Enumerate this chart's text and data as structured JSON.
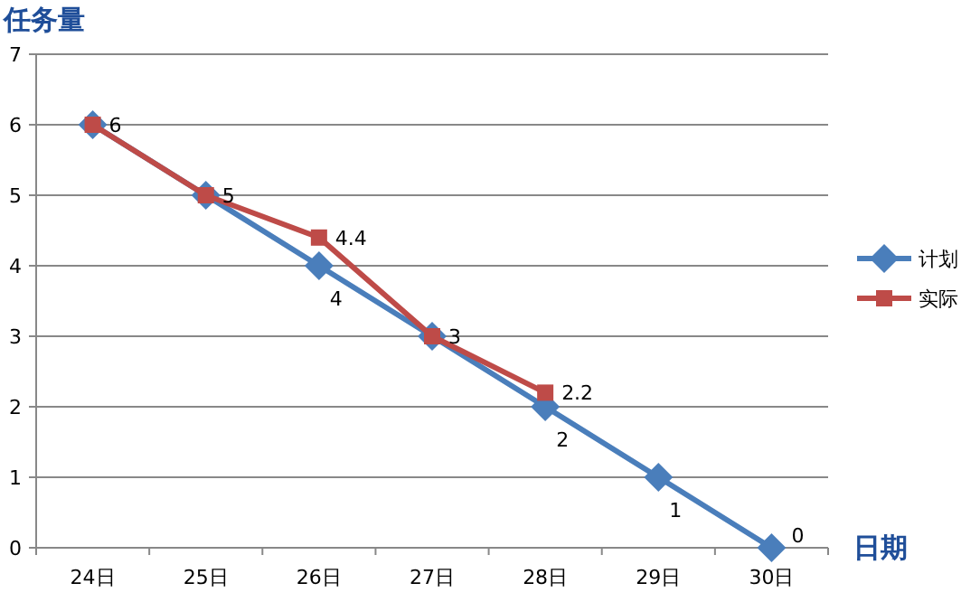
{
  "chart_data": {
    "type": "line",
    "ylabel": "任务量",
    "xlabel": "日期",
    "categories": [
      "24日",
      "25日",
      "26日",
      "27日",
      "28日",
      "29日",
      "30日"
    ],
    "series": [
      {
        "name": "计划",
        "color": "#4a7ebb",
        "marker": "diamond",
        "values": [
          6,
          5,
          4,
          3,
          2,
          1,
          0
        ],
        "value_labels": [
          null,
          null,
          "4",
          null,
          "2",
          "1",
          "0"
        ]
      },
      {
        "name": "实际",
        "color": "#be4b48",
        "marker": "square",
        "values": [
          6,
          5,
          4.4,
          3,
          2.2,
          null,
          null
        ],
        "value_labels": [
          "6",
          "5",
          "4.4",
          "3",
          "2.2",
          null,
          null
        ]
      }
    ],
    "ylim": [
      0,
      7
    ],
    "yticks": [
      0,
      1,
      2,
      3,
      4,
      5,
      6,
      7
    ],
    "grid": "y",
    "legend": "right",
    "line_style": "solid"
  }
}
